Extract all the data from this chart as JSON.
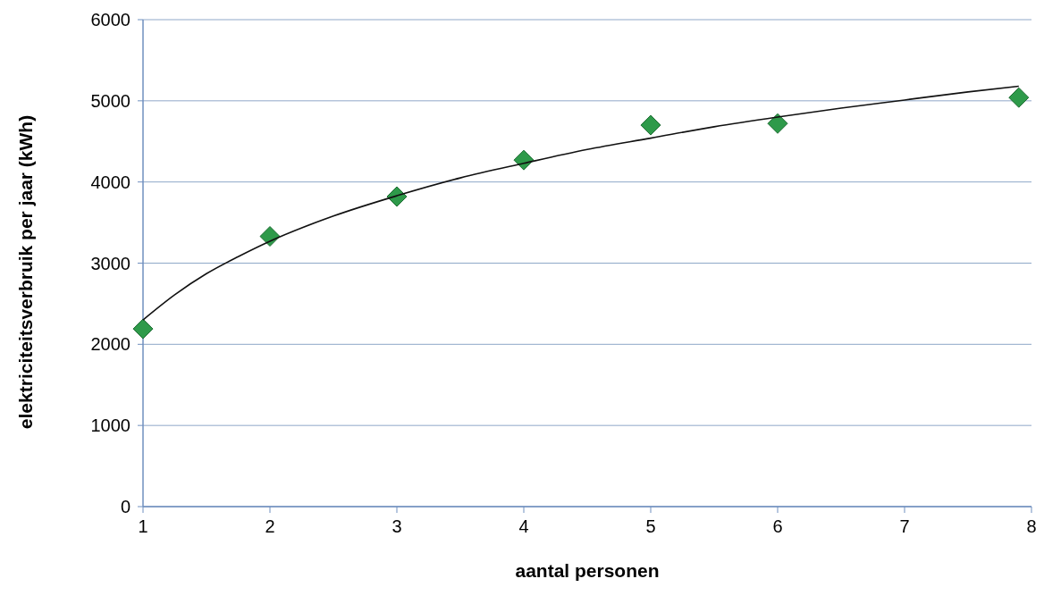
{
  "chart_data": {
    "type": "scatter",
    "xlabel": "aantal personen",
    "ylabel": "elektriciteitsverbruik per jaar (kWh)",
    "xlim": [
      1,
      8
    ],
    "xticks": [
      1,
      2,
      3,
      4,
      5,
      6,
      7,
      8
    ],
    "ylim": [
      0,
      6000
    ],
    "yticks": [
      0,
      1000,
      2000,
      3000,
      4000,
      5000,
      6000
    ],
    "grid": "y",
    "marker": "diamond",
    "series": [
      {
        "color": "#2e9a4a",
        "x": [
          1,
          2,
          3,
          4,
          5,
          6,
          7.9
        ],
        "values": [
          2190,
          3330,
          3820,
          4270,
          4700,
          4720,
          5040
        ]
      },
      {
        "type": "line",
        "marker": "none",
        "color": "#111111",
        "x": [
          1,
          1.25,
          1.5,
          1.75,
          2,
          2.5,
          3,
          3.5,
          4,
          4.5,
          5,
          5.5,
          6,
          6.5,
          7,
          7.5,
          7.9
        ],
        "values": [
          2300,
          2610,
          2870,
          3080,
          3270,
          3580,
          3830,
          4050,
          4230,
          4400,
          4540,
          4680,
          4800,
          4910,
          5010,
          5110,
          5180
        ]
      }
    ]
  }
}
